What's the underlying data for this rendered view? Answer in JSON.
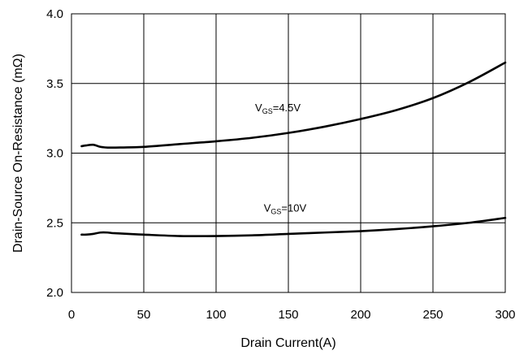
{
  "chart_data": {
    "type": "line",
    "title": "",
    "xlabel": "Drain Current(A)",
    "ylabel": "Drain-Source On-Resistance (mΩ)",
    "xlim": [
      0,
      300
    ],
    "ylim": [
      2.0,
      4.0
    ],
    "xticks": [
      "0",
      "50",
      "100",
      "150",
      "200",
      "250",
      "300"
    ],
    "yticks": [
      "2.0",
      "2.5",
      "3.0",
      "3.5",
      "4.0"
    ],
    "grid": true,
    "line_color": "#000000",
    "series": [
      {
        "label_main": "V",
        "label_sub": "GS",
        "label_tail": "=4.5V",
        "x": [
          7,
          10,
          15,
          20,
          25,
          30,
          50,
          75,
          100,
          125,
          150,
          175,
          200,
          225,
          250,
          275,
          300
        ],
        "y": [
          3.05,
          3.055,
          3.06,
          3.045,
          3.04,
          3.04,
          3.045,
          3.065,
          3.085,
          3.11,
          3.145,
          3.19,
          3.245,
          3.31,
          3.395,
          3.51,
          3.65
        ]
      },
      {
        "label_main": "V",
        "label_sub": "GS",
        "label_tail": "=10V",
        "x": [
          7,
          10,
          15,
          20,
          25,
          30,
          50,
          75,
          100,
          125,
          150,
          175,
          200,
          225,
          250,
          275,
          300
        ],
        "y": [
          2.415,
          2.415,
          2.42,
          2.43,
          2.43,
          2.425,
          2.415,
          2.405,
          2.405,
          2.41,
          2.42,
          2.43,
          2.44,
          2.455,
          2.475,
          2.5,
          2.535
        ]
      }
    ]
  }
}
